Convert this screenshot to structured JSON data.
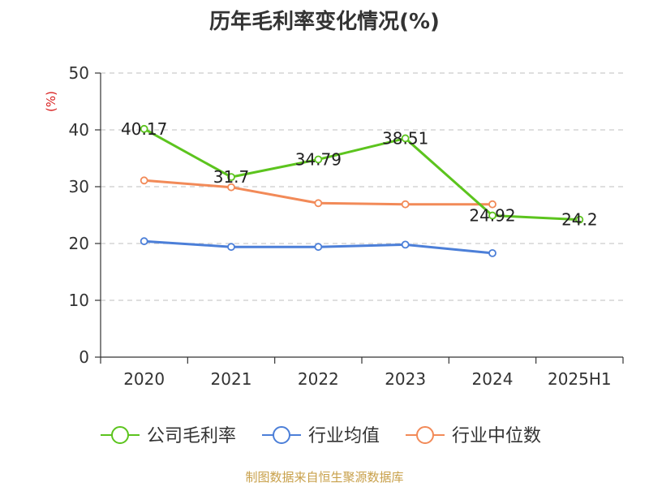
{
  "page": {
    "source_note": "制图数据来自恒生聚源数据库"
  },
  "colors": {
    "source_note": "#c8a04a",
    "unit": "#d81e1e",
    "grid": "#cccccc",
    "axis": "#333333"
  },
  "chart_data": {
    "type": "line",
    "title": "历年毛利率变化情况(%)",
    "ylabel": "(%)",
    "xlabel": "",
    "categories": [
      "2020",
      "2021",
      "2022",
      "2023",
      "2024",
      "2025H1"
    ],
    "ylim": [
      0,
      50
    ],
    "yticks": [
      0,
      10,
      20,
      30,
      40,
      50
    ],
    "grid": true,
    "legend_position": "bottom",
    "series": [
      {
        "name": "公司毛利率",
        "color": "#5cc41e",
        "values": [
          40.17,
          31.7,
          34.79,
          38.51,
          24.92,
          24.2
        ],
        "labels": [
          "40.17",
          "31.7",
          "34.79",
          "38.51",
          "24.92",
          "24.2"
        ]
      },
      {
        "name": "行业均值",
        "color": "#4c7fd8",
        "values": [
          20.4,
          19.4,
          19.4,
          19.8,
          18.3,
          null
        ]
      },
      {
        "name": "行业中位数",
        "color": "#f28a58",
        "values": [
          31.1,
          29.9,
          27.1,
          26.9,
          26.9,
          null
        ]
      }
    ]
  }
}
